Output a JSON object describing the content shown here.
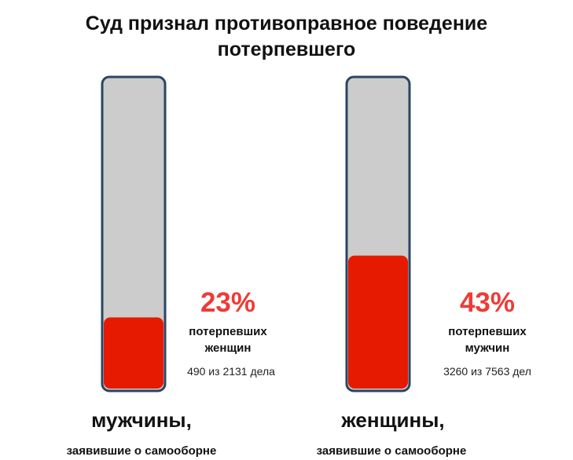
{
  "title_line1": "Суд признал противоправное поведение",
  "title_line2": "потерпевшего",
  "colors": {
    "fill": "#e51a00",
    "empty": "#cccccc",
    "border": "#2b4563",
    "accent_text": "#ef3b36"
  },
  "chart_data": {
    "type": "bar",
    "title": "Суд признал противоправное поведение потерпевшего",
    "ylim": [
      0,
      100
    ],
    "categories": [
      "мужчины,",
      "женщины,"
    ],
    "series": [
      {
        "values": [
          23,
          43
        ]
      }
    ],
    "bars": [
      {
        "group": "мужчины,",
        "subtitle": "заявившие о самооборне",
        "percent_label": "23%",
        "value": 23,
        "description_line1": "потерпевших",
        "description_line2": "женщин",
        "count_label": "490 из 2131 дела"
      },
      {
        "group": "женщины,",
        "subtitle": "заявившие о самооборне",
        "percent_label": "43%",
        "value": 43,
        "description_line1": "потерпевших",
        "description_line2": "мужчин",
        "count_label": "3260 из 7563 дел"
      }
    ]
  }
}
